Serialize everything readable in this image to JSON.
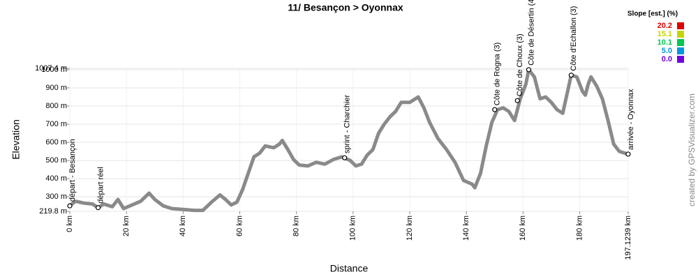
{
  "chart_data": {
    "type": "line",
    "title": "11/ Besançon > Oyonnax",
    "x_label": "Distance",
    "y_label": "Elevation",
    "credit": "created by GPSVisualizer.com",
    "grid": true,
    "xlim": [
      0,
      197.1239
    ],
    "ylim": [
      219.8,
      1007.4
    ],
    "xticks": [
      {
        "value": 0,
        "label": "0 km"
      },
      {
        "value": 20,
        "label": "20 km"
      },
      {
        "value": 40,
        "label": "40 km"
      },
      {
        "value": 60,
        "label": "60 km"
      },
      {
        "value": 80,
        "label": "80 km"
      },
      {
        "value": 100,
        "label": "100 km"
      },
      {
        "value": 120,
        "label": "120 km"
      },
      {
        "value": 140,
        "label": "140 km"
      },
      {
        "value": 160,
        "label": "160 km"
      },
      {
        "value": 180,
        "label": "180 km"
      },
      {
        "value": 197.1239,
        "label": "197.1239 km"
      }
    ],
    "yticks": [
      {
        "value": 219.8,
        "label": "219.8 m"
      },
      {
        "value": 300,
        "label": "300 m"
      },
      {
        "value": 400,
        "label": "400 m"
      },
      {
        "value": 500,
        "label": "500 m"
      },
      {
        "value": 600,
        "label": "600 m"
      },
      {
        "value": 700,
        "label": "700 m"
      },
      {
        "value": 800,
        "label": "800 m"
      },
      {
        "value": 900,
        "label": "900 m"
      },
      {
        "value": 1000,
        "label": "1000 m"
      },
      {
        "value": 1007.4,
        "label": "1007.4 m"
      }
    ],
    "x": [
      0,
      2,
      5,
      8,
      10,
      12,
      15,
      17,
      19,
      22,
      25,
      28,
      30,
      33,
      36,
      40,
      44,
      47,
      50,
      53,
      55,
      57,
      59,
      61,
      63,
      65,
      67,
      69,
      72,
      74,
      75,
      77,
      79,
      81,
      84,
      87,
      90,
      93,
      96,
      99,
      101,
      103,
      105,
      107,
      109,
      111,
      113,
      115,
      117,
      120,
      123,
      125,
      127,
      130,
      133,
      136,
      139,
      142,
      143,
      145,
      147,
      149,
      151,
      153,
      155,
      157,
      159,
      161,
      162,
      164,
      166,
      168,
      170,
      172,
      174,
      176,
      177,
      179,
      181,
      182,
      183,
      184,
      186,
      188,
      190,
      192,
      194,
      197.1
    ],
    "series": [
      {
        "name": "Elevation",
        "color": "#8a8a8a",
        "values": [
          250,
          275,
          265,
          260,
          240,
          260,
          245,
          285,
          235,
          255,
          275,
          320,
          285,
          250,
          235,
          230,
          225,
          225,
          270,
          310,
          285,
          255,
          270,
          340,
          430,
          520,
          540,
          580,
          570,
          590,
          610,
          560,
          505,
          475,
          470,
          490,
          480,
          505,
          520,
          500,
          470,
          480,
          530,
          560,
          650,
          700,
          740,
          770,
          820,
          820,
          850,
          790,
          710,
          620,
          560,
          490,
          390,
          370,
          350,
          430,
          580,
          710,
          780,
          790,
          770,
          720,
          840,
          920,
          1000,
          960,
          840,
          850,
          820,
          780,
          760,
          900,
          970,
          960,
          880,
          860,
          920,
          960,
          910,
          840,
          720,
          590,
          550,
          535
        ]
      }
    ],
    "waypoints": [
      {
        "label": "départ - Besançon",
        "x": 0,
        "y": 250
      },
      {
        "label": "départ réel",
        "x": 10,
        "y": 240
      },
      {
        "label": "sprint - Charchier",
        "x": 97,
        "y": 515
      },
      {
        "label": "Côte de Rogna (3)",
        "x": 150,
        "y": 780
      },
      {
        "label": "Côte de Choux (3)",
        "x": 158,
        "y": 830
      },
      {
        "label": "Côte de Désertin (4",
        "x": 162,
        "y": 1000
      },
      {
        "label": "Côte d'Echallon (3)",
        "x": 177,
        "y": 970
      },
      {
        "label": "arrivée - Oyonnax",
        "x": 197.1,
        "y": 535
      }
    ],
    "slope_legend": {
      "title": "Slope [est.] (%)",
      "items": [
        {
          "label": "20.2",
          "color": "#e00000"
        },
        {
          "label": "15.1",
          "color": "#c8d400"
        },
        {
          "label": "10.1",
          "color": "#00c850"
        },
        {
          "label": "5.0",
          "color": "#0096e0"
        },
        {
          "label": "0.0",
          "color": "#7000e0"
        }
      ]
    }
  }
}
